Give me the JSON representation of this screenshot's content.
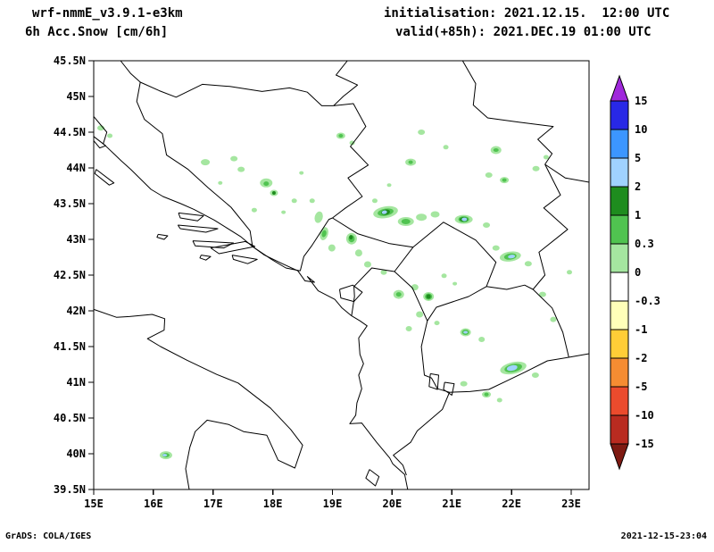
{
  "header": {
    "model": "wrf-nmmE_v3.9.1-e3km",
    "product": "6h Acc.Snow [cm/6h]",
    "init": "initialisation: 2021.12.15.  12:00 UTC",
    "valid": "valid(+85h): 2021.DEC.19 01:00 UTC"
  },
  "footer": {
    "left": "GrADS: COLA/IGES",
    "right": "2021-12-15-23:04"
  },
  "colors": {
    "background": "#FFFFFF",
    "map_lines": "#000000",
    "text": "#000000"
  },
  "chart_data": {
    "type": "heatmap",
    "title": "6h Acc.Snow [cm/6h]",
    "subtitle": "wrf-nmmE_v3.9.1-e3km, valid(+85h): 2021.DEC.19 01:00 UTC",
    "xlabel": "",
    "ylabel": "",
    "x_axis": {
      "tick_labels": [
        "15E",
        "16E",
        "17E",
        "18E",
        "19E",
        "20E",
        "21E",
        "22E",
        "23E"
      ],
      "range_deg_lon": [
        15,
        23.3
      ]
    },
    "y_axis": {
      "tick_labels": [
        "45.5N",
        "45N",
        "44.5N",
        "44N",
        "43.5N",
        "43N",
        "42.5N",
        "42N",
        "41.5N",
        "41N",
        "40.5N",
        "40N",
        "39.5N"
      ],
      "range_deg_lat": [
        39.5,
        45.5
      ]
    },
    "grid": false,
    "legend_position": "right",
    "colorbar": {
      "unit": "cm/6h",
      "boundary_labels": [
        "15",
        "10",
        "5",
        "2",
        "1",
        "0.3",
        "0",
        "-0.3",
        "-1",
        "-2",
        "-5",
        "-10",
        "-15"
      ],
      "colors": [
        "#A028DC",
        "#2828E6",
        "#3C96FF",
        "#A0D2FF",
        "#1E8C1E",
        "#50C350",
        "#A5E6A0",
        "#FFFFFF",
        "#FFFFB9",
        "#FFCD37",
        "#F58C32",
        "#EB4B2D",
        "#B92B20",
        "#7E1A12"
      ],
      "bin_color_index": {
        "0-0.3": 6,
        "0.3-1": 5,
        "1-2": 4,
        "2-5": 3
      }
    },
    "patch_format": [
      "lon_deg",
      "lat_deg",
      "width_px",
      "height_px",
      "rot_deg",
      "bin_cm"
    ],
    "snow_patches": [
      [
        15.12,
        44.56,
        8,
        6,
        0,
        "0-0.3"
      ],
      [
        15.27,
        44.45,
        6,
        5,
        0,
        "0-0.3"
      ],
      [
        16.87,
        44.08,
        10,
        7,
        0,
        "0-0.3"
      ],
      [
        17.35,
        44.13,
        8,
        6,
        0,
        "0-0.3"
      ],
      [
        17.47,
        43.98,
        8,
        6,
        0,
        "0-0.3"
      ],
      [
        17.89,
        43.79,
        14,
        10,
        0,
        "0-0.3"
      ],
      [
        18.02,
        43.65,
        9,
        7,
        0,
        "0-0.3"
      ],
      [
        18.36,
        43.54,
        6,
        5,
        0,
        "0-0.3"
      ],
      [
        17.69,
        43.41,
        6,
        5,
        0,
        "0-0.3"
      ],
      [
        17.12,
        43.79,
        5,
        4,
        0,
        "0-0.3"
      ],
      [
        18.48,
        43.93,
        5,
        4,
        0,
        "0-0.3"
      ],
      [
        19.14,
        44.45,
        10,
        7,
        0,
        "0-0.3"
      ],
      [
        19.33,
        44.35,
        6,
        5,
        0,
        "0-0.3"
      ],
      [
        19.95,
        43.76,
        5,
        4,
        0,
        "0-0.3"
      ],
      [
        19.71,
        43.54,
        6,
        5,
        0,
        "0-0.3"
      ],
      [
        20.31,
        44.08,
        12,
        8,
        0,
        "0-0.3"
      ],
      [
        20.49,
        44.5,
        8,
        6,
        0,
        "0-0.3"
      ],
      [
        20.9,
        44.29,
        6,
        5,
        0,
        "0-0.3"
      ],
      [
        21.74,
        44.25,
        12,
        9,
        0,
        "0-0.3"
      ],
      [
        21.62,
        43.9,
        8,
        6,
        0,
        "0-0.3"
      ],
      [
        21.88,
        43.83,
        10,
        7,
        0,
        "0-0.3"
      ],
      [
        22.41,
        43.99,
        8,
        6,
        0,
        "0-0.3"
      ],
      [
        22.58,
        44.15,
        6,
        5,
        0,
        "0-0.3"
      ],
      [
        19.89,
        43.38,
        28,
        13,
        -10,
        "0-0.3"
      ],
      [
        20.23,
        43.25,
        18,
        10,
        0,
        "0-0.3"
      ],
      [
        20.49,
        43.31,
        12,
        8,
        0,
        "0-0.3"
      ],
      [
        20.72,
        43.35,
        10,
        7,
        0,
        "0-0.3"
      ],
      [
        21.2,
        43.28,
        20,
        10,
        0,
        "0-0.3"
      ],
      [
        21.58,
        43.2,
        8,
        6,
        0,
        "0-0.3"
      ],
      [
        18.66,
        43.54,
        6,
        5,
        0,
        "0-0.3"
      ],
      [
        18.77,
        43.31,
        9,
        13,
        15,
        "0-0.3"
      ],
      [
        18.86,
        43.08,
        9,
        15,
        15,
        "0-0.3"
      ],
      [
        18.99,
        42.88,
        8,
        8,
        0,
        "0-0.3"
      ],
      [
        19.32,
        43.01,
        12,
        13,
        0,
        "0-0.3"
      ],
      [
        19.44,
        42.81,
        8,
        8,
        0,
        "0-0.3"
      ],
      [
        19.59,
        42.65,
        8,
        7,
        0,
        "0-0.3"
      ],
      [
        19.86,
        42.54,
        7,
        6,
        0,
        "0-0.3"
      ],
      [
        18.18,
        43.38,
        5,
        4,
        0,
        "0-0.3"
      ],
      [
        20.11,
        42.23,
        12,
        10,
        0,
        "0-0.3"
      ],
      [
        20.38,
        42.33,
        8,
        7,
        0,
        "0-0.3"
      ],
      [
        20.61,
        42.2,
        12,
        10,
        0,
        "0-0.3"
      ],
      [
        20.46,
        41.95,
        8,
        7,
        0,
        "0-0.3"
      ],
      [
        20.28,
        41.75,
        7,
        6,
        0,
        "0-0.3"
      ],
      [
        20.75,
        41.83,
        6,
        5,
        0,
        "0-0.3"
      ],
      [
        20.87,
        42.49,
        6,
        5,
        0,
        "0-0.3"
      ],
      [
        21.05,
        42.38,
        5,
        4,
        0,
        "0-0.3"
      ],
      [
        21.98,
        42.76,
        24,
        11,
        -8,
        "0-0.3"
      ],
      [
        21.74,
        42.88,
        8,
        6,
        0,
        "0-0.3"
      ],
      [
        22.28,
        42.66,
        8,
        6,
        0,
        "0-0.3"
      ],
      [
        22.52,
        42.23,
        8,
        6,
        0,
        "0-0.3"
      ],
      [
        22.97,
        42.54,
        6,
        5,
        0,
        "0-0.3"
      ],
      [
        21.23,
        41.7,
        12,
        9,
        0,
        "0-0.3"
      ],
      [
        21.5,
        41.6,
        7,
        6,
        0,
        "0-0.3"
      ],
      [
        22.03,
        41.2,
        30,
        13,
        -12,
        "0-0.3"
      ],
      [
        22.4,
        41.1,
        8,
        6,
        0,
        "0-0.3"
      ],
      [
        21.2,
        40.98,
        8,
        6,
        0,
        "0-0.3"
      ],
      [
        21.58,
        40.83,
        10,
        7,
        0,
        "0-0.3"
      ],
      [
        21.8,
        40.75,
        6,
        5,
        0,
        "0-0.3"
      ],
      [
        22.7,
        41.88,
        7,
        6,
        0,
        "0-0.3"
      ],
      [
        16.21,
        39.98,
        14,
        9,
        0,
        "0-0.3"
      ],
      [
        17.89,
        43.78,
        6,
        5,
        0,
        "0.3-1"
      ],
      [
        19.14,
        44.45,
        5,
        4,
        0,
        "0.3-1"
      ],
      [
        20.31,
        44.08,
        5,
        4,
        0,
        "0.3-1"
      ],
      [
        21.74,
        44.25,
        6,
        4,
        0,
        "0.3-1"
      ],
      [
        21.88,
        43.83,
        5,
        4,
        0,
        "0.3-1"
      ],
      [
        19.89,
        43.38,
        18,
        8,
        -10,
        "0.3-1"
      ],
      [
        20.23,
        43.25,
        10,
        6,
        0,
        "0.3-1"
      ],
      [
        21.2,
        43.28,
        12,
        7,
        0,
        "0.3-1"
      ],
      [
        18.86,
        43.08,
        5,
        8,
        15,
        "0.3-1"
      ],
      [
        19.32,
        43.01,
        7,
        8,
        0,
        "0.3-1"
      ],
      [
        20.11,
        42.23,
        6,
        5,
        0,
        "0.3-1"
      ],
      [
        20.61,
        42.2,
        8,
        7,
        0,
        "0.3-1"
      ],
      [
        21.98,
        42.76,
        14,
        7,
        -8,
        "0.3-1"
      ],
      [
        21.23,
        41.7,
        8,
        6,
        0,
        "0.3-1"
      ],
      [
        22.03,
        41.2,
        20,
        9,
        -12,
        "0.3-1"
      ],
      [
        21.58,
        40.83,
        5,
        4,
        0,
        "0.3-1"
      ],
      [
        16.21,
        39.98,
        8,
        5,
        0,
        "0.3-1"
      ],
      [
        18.02,
        43.65,
        4,
        4,
        0,
        "1-2"
      ],
      [
        19.89,
        43.38,
        10,
        6,
        -10,
        "1-2"
      ],
      [
        21.2,
        43.28,
        9,
        5,
        0,
        "1-2"
      ],
      [
        19.31,
        43.03,
        4,
        5,
        0,
        "1-2"
      ],
      [
        20.61,
        42.2,
        5,
        5,
        0,
        "1-2"
      ],
      [
        19.87,
        43.38,
        6,
        4,
        -10,
        "2-5"
      ],
      [
        21.21,
        43.28,
        6,
        4,
        0,
        "2-5"
      ],
      [
        22.0,
        42.76,
        8,
        4,
        -8,
        "2-5"
      ],
      [
        21.23,
        41.7,
        5,
        3,
        0,
        "2-5"
      ],
      [
        22.01,
        41.2,
        12,
        6,
        -12,
        "2-5"
      ],
      [
        16.19,
        39.98,
        5,
        3,
        0,
        "2-5"
      ]
    ]
  }
}
